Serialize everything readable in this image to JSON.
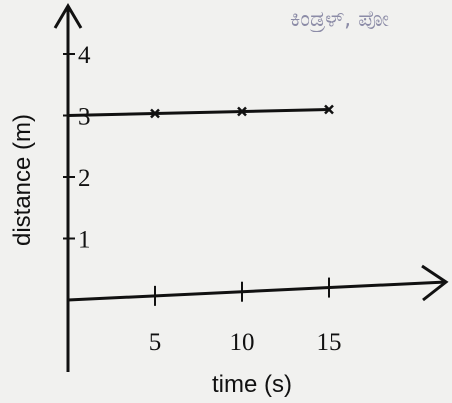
{
  "header_stamp": "ಕಿಂಡ್ರಳ್, ಪೋ",
  "chart_data": {
    "type": "line",
    "title": "",
    "xlabel": "time (s)",
    "ylabel": "distance (m)",
    "x_ticks": [
      5,
      10,
      15
    ],
    "y_ticks": [
      1,
      2,
      3,
      4
    ],
    "xlim": [
      0,
      20
    ],
    "ylim": [
      0,
      4.5
    ],
    "grid": false,
    "legend": "none",
    "series": [
      {
        "x": [
          0,
          5,
          10,
          15
        ],
        "y": [
          3,
          3,
          3,
          3
        ]
      }
    ],
    "line_color": "#111111"
  }
}
